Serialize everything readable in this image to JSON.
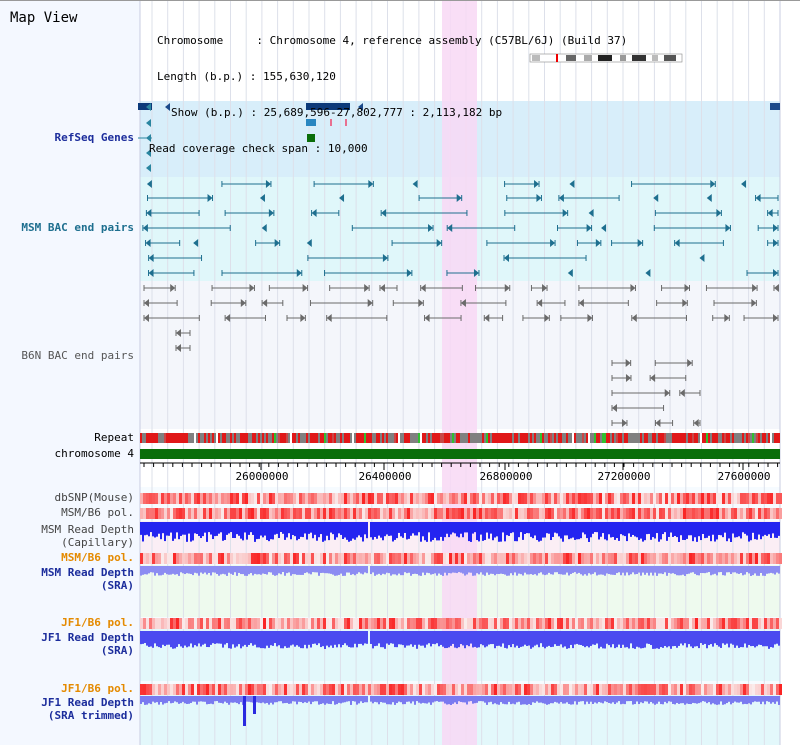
{
  "title": "Map View",
  "info": {
    "chromosome_key": "Chromosome",
    "chromosome_val": "Chromosome 4, reference assembly (C57BL/6J) (Build 37)",
    "length_key": "Length (b.p.)",
    "length_val": "155,630,120",
    "show_key": "Show (b.p.)",
    "show_val": "25,689,596-27,802,777 : 2,113,182 bp",
    "span_key": "Read coverage check span",
    "span_val": "10,000"
  },
  "tracks": {
    "refseq": "RefSeq Genes",
    "msm_bac": "MSM BAC end pairs",
    "b6n_bac": "B6N BAC end pairs",
    "repeat": "Repeat",
    "chrom": "chromosome 4",
    "dbsnp": "dbSNP(Mouse)",
    "msm_pol1": "MSM/B6 pol.",
    "msm_depth_cap1": "MSM Read Depth",
    "msm_depth_cap2": "(Capillary)",
    "msm_pol2": "MSM/B6 pol.",
    "msm_depth_sra1": "MSM Read Depth",
    "msm_depth_sra2": "(SRA)",
    "jf1_pol1": "JF1/B6 pol.",
    "jf1_depth1": "JF1 Read Depth",
    "jf1_depth2": "(SRA)",
    "jf1_pol2": "JF1/B6 pol.",
    "jf1_trim1": "JF1 Read Depth",
    "jf1_trim2": "(SRA trimmed)"
  },
  "axis_ticks": [
    "26000000",
    "26400000",
    "26800000",
    "27200000",
    "27600000"
  ],
  "colors": {
    "highlight": "#f8d8f4",
    "refseq_bg": "#d8eefa",
    "msm_bg": "#e0f7fa",
    "chrom": "#0a6e0a",
    "depth_blue": "#2222ee",
    "depth_light": "#8c8cf2",
    "pol_red": "#e02020"
  }
}
